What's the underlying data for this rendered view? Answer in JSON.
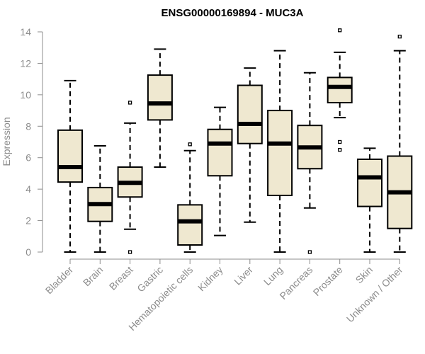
{
  "chart_data": {
    "type": "boxplot",
    "title": "ENSG00000169894 - MUC3A",
    "xlabel": "",
    "ylabel": "Expression",
    "ylim": [
      0,
      14
    ],
    "yticks": [
      0,
      2,
      4,
      6,
      8,
      10,
      12,
      14
    ],
    "grid": false,
    "categories": [
      "Bladder",
      "Brain",
      "Breast",
      "Gastric",
      "Hematopoietic cells",
      "Kidney",
      "Liver",
      "Lung",
      "Pancreas",
      "Prostate",
      "Skin",
      "Unknown / Other"
    ],
    "boxes": [
      {
        "label": "Bladder",
        "whisker_low": 0.0,
        "q1": 4.45,
        "median": 5.4,
        "q3": 7.75,
        "whisker_high": 10.9,
        "outliers": []
      },
      {
        "label": "Brain",
        "whisker_low": 0.0,
        "q1": 1.95,
        "median": 3.05,
        "q3": 4.1,
        "whisker_high": 6.75,
        "outliers": []
      },
      {
        "label": "Breast",
        "whisker_low": 1.45,
        "q1": 3.5,
        "median": 4.4,
        "q3": 5.4,
        "whisker_high": 8.2,
        "outliers": [
          0.0,
          9.5
        ]
      },
      {
        "label": "Gastric",
        "whisker_low": 5.4,
        "q1": 8.4,
        "median": 9.45,
        "q3": 11.25,
        "whisker_high": 12.9,
        "outliers": []
      },
      {
        "label": "Hematopoietic cells",
        "whisker_low": 0.0,
        "q1": 0.45,
        "median": 1.95,
        "q3": 3.0,
        "whisker_high": 6.45,
        "outliers": [
          6.85
        ]
      },
      {
        "label": "Kidney",
        "whisker_low": 1.05,
        "q1": 4.85,
        "median": 6.9,
        "q3": 7.8,
        "whisker_high": 9.2,
        "outliers": []
      },
      {
        "label": "Liver",
        "whisker_low": 1.9,
        "q1": 6.9,
        "median": 8.15,
        "q3": 10.6,
        "whisker_high": 11.7,
        "outliers": []
      },
      {
        "label": "Lung",
        "whisker_low": 0.0,
        "q1": 3.6,
        "median": 6.9,
        "q3": 9.0,
        "whisker_high": 12.8,
        "outliers": []
      },
      {
        "label": "Pancreas",
        "whisker_low": 2.8,
        "q1": 5.3,
        "median": 6.65,
        "q3": 8.05,
        "whisker_high": 11.4,
        "outliers": [
          0.0
        ]
      },
      {
        "label": "Prostate",
        "whisker_low": 8.55,
        "q1": 9.5,
        "median": 10.5,
        "q3": 11.1,
        "whisker_high": 12.7,
        "outliers": [
          14.1,
          7.0,
          6.5
        ]
      },
      {
        "label": "Skin",
        "whisker_low": 0.0,
        "q1": 2.9,
        "median": 4.75,
        "q3": 5.9,
        "whisker_high": 6.6,
        "outliers": []
      },
      {
        "label": "Unknown / Other",
        "whisker_low": 0.0,
        "q1": 1.5,
        "median": 3.8,
        "q3": 6.1,
        "whisker_high": 12.8,
        "outliers": [
          13.7
        ]
      }
    ],
    "colors": {
      "box_fill": "#efe8d0",
      "stroke": "#000000",
      "axis": "#8c8c8c",
      "tick_text": "#8c8c8c",
      "title": "#000000"
    }
  }
}
